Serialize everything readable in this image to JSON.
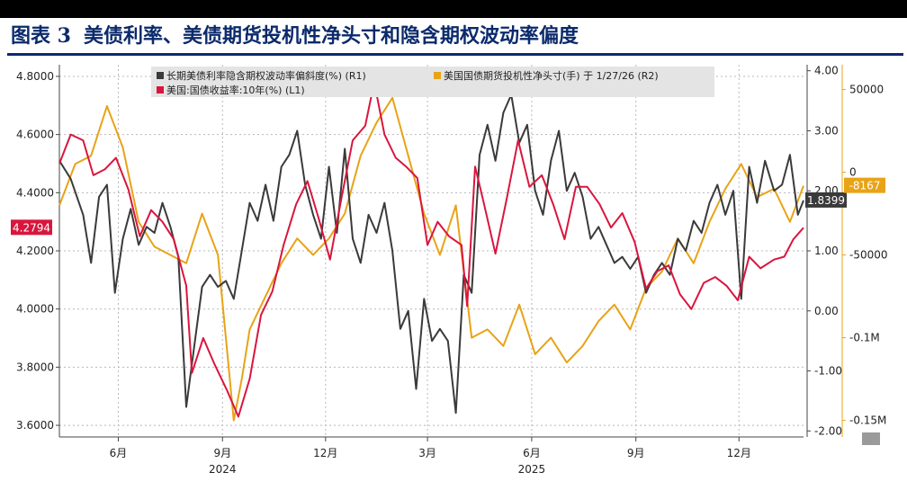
{
  "header": {
    "figure_no": "图表 3",
    "title": "美债利率、美债期货投机性净头寸和隐含期权波动率偏度"
  },
  "chart_data": {
    "type": "line",
    "x_ticks": [
      {
        "label": "6月",
        "date": "2024-06-01"
      },
      {
        "label": "9月",
        "date": "2024-09-01"
      },
      {
        "label": "12月",
        "date": "2024-12-01"
      },
      {
        "label": "3月",
        "date": "2025-03-01"
      },
      {
        "label": "6月",
        "date": "2025-06-01"
      },
      {
        "label": "9月",
        "date": "2025-09-01"
      },
      {
        "label": "12月",
        "date": "2025-12-01"
      }
    ],
    "year_labels": [
      {
        "label": "2024",
        "date": "2024-09-01"
      },
      {
        "label": "2025",
        "date": "2025-06-01"
      }
    ],
    "x_range": [
      "2024-04-10",
      "2026-01-27"
    ],
    "axes": {
      "L1": {
        "ticks": [
          "3.6000",
          "3.8000",
          "4.0000",
          "4.2000",
          "4.4000",
          "4.6000",
          "4.8000"
        ],
        "ylim": [
          3.56,
          4.84
        ]
      },
      "R1": {
        "ticks": [
          "-2.00",
          "-1.00",
          "0.00",
          "1.00",
          "2.00",
          "3.00",
          "4.00"
        ],
        "ylim": [
          -2.1,
          4.1
        ]
      },
      "R2": {
        "ticks": [
          "-0.15M",
          "-0.1M",
          "-50000",
          "0",
          "50000"
        ],
        "tick_values": [
          -150000,
          -100000,
          -50000,
          0,
          50000
        ],
        "ylim": [
          -160000,
          65000
        ]
      }
    },
    "legend": [
      {
        "name": "长期美债利率隐含期权波动率偏斜度(%) (R1)",
        "color": "#3a3a3a"
      },
      {
        "name": "美国国债期货投机性净头寸(手) 于 1/27/26 (R2)",
        "color": "#e8a317"
      },
      {
        "name": "美国:国债收益率:10年(%) (L1)",
        "color": "#d9163d"
      }
    ],
    "last_value_tags": [
      {
        "text": "4.2794",
        "axis": "L1",
        "value": 4.2794,
        "color": "#d9163d"
      },
      {
        "text": "1.8399",
        "axis": "R1",
        "value": 1.8399,
        "color": "#3a3a3a"
      },
      {
        "text": "-8167",
        "axis": "R2",
        "value": -8167,
        "color": "#e8a317"
      }
    ],
    "series": [
      {
        "name": "长期美债利率隐含期权波动率偏斜度(%) (R1)",
        "axis": "R1",
        "color": "#3a3a3a",
        "points": [
          [
            "2024-04-10",
            2.5
          ],
          [
            "2024-04-20",
            2.2
          ],
          [
            "2024-05-01",
            1.6
          ],
          [
            "2024-05-08",
            0.8
          ],
          [
            "2024-05-15",
            1.9
          ],
          [
            "2024-05-22",
            2.1
          ],
          [
            "2024-05-29",
            0.3
          ],
          [
            "2024-06-05",
            1.2
          ],
          [
            "2024-06-12",
            1.7
          ],
          [
            "2024-06-19",
            1.1
          ],
          [
            "2024-06-26",
            1.4
          ],
          [
            "2024-07-03",
            1.3
          ],
          [
            "2024-07-10",
            1.8
          ],
          [
            "2024-07-17",
            1.4
          ],
          [
            "2024-07-24",
            0.9
          ],
          [
            "2024-07-31",
            -1.6
          ],
          [
            "2024-08-07",
            -0.6
          ],
          [
            "2024-08-14",
            0.4
          ],
          [
            "2024-08-21",
            0.6
          ],
          [
            "2024-08-28",
            0.4
          ],
          [
            "2024-09-04",
            0.5
          ],
          [
            "2024-09-11",
            0.2
          ],
          [
            "2024-09-18",
            1.0
          ],
          [
            "2024-09-25",
            1.8
          ],
          [
            "2024-10-02",
            1.5
          ],
          [
            "2024-10-09",
            2.1
          ],
          [
            "2024-10-16",
            1.5
          ],
          [
            "2024-10-23",
            2.4
          ],
          [
            "2024-10-30",
            2.6
          ],
          [
            "2024-11-06",
            3.0
          ],
          [
            "2024-11-13",
            2.1
          ],
          [
            "2024-11-20",
            1.6
          ],
          [
            "2024-11-27",
            1.2
          ],
          [
            "2024-12-04",
            2.4
          ],
          [
            "2024-12-11",
            1.3
          ],
          [
            "2024-12-18",
            2.7
          ],
          [
            "2024-12-25",
            1.2
          ],
          [
            "2025-01-01",
            0.8
          ],
          [
            "2025-01-08",
            1.6
          ],
          [
            "2025-01-15",
            1.3
          ],
          [
            "2025-01-22",
            1.8
          ],
          [
            "2025-01-29",
            1.0
          ],
          [
            "2025-02-05",
            -0.3
          ],
          [
            "2025-02-12",
            0.0
          ],
          [
            "2025-02-19",
            -1.3
          ],
          [
            "2025-02-26",
            0.2
          ],
          [
            "2025-03-05",
            -0.5
          ],
          [
            "2025-03-12",
            -0.3
          ],
          [
            "2025-03-19",
            -0.5
          ],
          [
            "2025-03-26",
            -1.7
          ],
          [
            "2025-04-02",
            0.6
          ],
          [
            "2025-04-09",
            0.3
          ],
          [
            "2025-04-16",
            2.6
          ],
          [
            "2025-04-23",
            3.1
          ],
          [
            "2025-04-30",
            2.5
          ],
          [
            "2025-05-07",
            3.3
          ],
          [
            "2025-05-14",
            3.6
          ],
          [
            "2025-05-21",
            2.8
          ],
          [
            "2025-05-28",
            3.1
          ],
          [
            "2025-06-04",
            2.0
          ],
          [
            "2025-06-11",
            1.6
          ],
          [
            "2025-06-18",
            2.5
          ],
          [
            "2025-06-25",
            3.0
          ],
          [
            "2025-07-02",
            2.0
          ],
          [
            "2025-07-09",
            2.3
          ],
          [
            "2025-07-16",
            1.9
          ],
          [
            "2025-07-23",
            1.2
          ],
          [
            "2025-07-30",
            1.4
          ],
          [
            "2025-08-06",
            1.1
          ],
          [
            "2025-08-13",
            0.8
          ],
          [
            "2025-08-20",
            0.9
          ],
          [
            "2025-08-27",
            0.7
          ],
          [
            "2025-09-03",
            0.9
          ],
          [
            "2025-09-10",
            0.3
          ],
          [
            "2025-09-17",
            0.6
          ],
          [
            "2025-09-24",
            0.8
          ],
          [
            "2025-10-01",
            0.6
          ],
          [
            "2025-10-08",
            1.2
          ],
          [
            "2025-10-15",
            1.0
          ],
          [
            "2025-10-22",
            1.5
          ],
          [
            "2025-10-29",
            1.3
          ],
          [
            "2025-11-05",
            1.8
          ],
          [
            "2025-11-12",
            2.1
          ],
          [
            "2025-11-19",
            1.6
          ],
          [
            "2025-11-26",
            2.0
          ],
          [
            "2025-12-03",
            0.2
          ],
          [
            "2025-12-10",
            2.4
          ],
          [
            "2025-12-17",
            1.8
          ],
          [
            "2025-12-24",
            2.5
          ],
          [
            "2026-01-01",
            2.0
          ],
          [
            "2026-01-08",
            2.1
          ],
          [
            "2026-01-15",
            2.6
          ],
          [
            "2026-01-22",
            1.6
          ],
          [
            "2026-01-27",
            1.8399
          ]
        ]
      },
      {
        "name": "美国国债期货投机性净头寸(手) 于 1/27/26 (R2)",
        "axis": "R2",
        "color": "#e8a317",
        "points": [
          [
            "2024-04-10",
            -20000
          ],
          [
            "2024-04-24",
            5000
          ],
          [
            "2024-05-08",
            10000
          ],
          [
            "2024-05-22",
            40000
          ],
          [
            "2024-06-05",
            15000
          ],
          [
            "2024-06-19",
            -30000
          ],
          [
            "2024-07-03",
            -45000
          ],
          [
            "2024-07-17",
            -50000
          ],
          [
            "2024-07-31",
            -55000
          ],
          [
            "2024-08-14",
            -25000
          ],
          [
            "2024-08-28",
            -50000
          ],
          [
            "2024-09-04",
            -100000
          ],
          [
            "2024-09-11",
            -150000
          ],
          [
            "2024-09-18",
            -125000
          ],
          [
            "2024-09-25",
            -95000
          ],
          [
            "2024-10-09",
            -75000
          ],
          [
            "2024-10-23",
            -55000
          ],
          [
            "2024-11-06",
            -40000
          ],
          [
            "2024-11-20",
            -50000
          ],
          [
            "2024-12-04",
            -40000
          ],
          [
            "2024-12-18",
            -25000
          ],
          [
            "2025-01-01",
            10000
          ],
          [
            "2025-01-15",
            30000
          ],
          [
            "2025-01-29",
            45000
          ],
          [
            "2025-02-12",
            10000
          ],
          [
            "2025-02-26",
            -25000
          ],
          [
            "2025-03-12",
            -50000
          ],
          [
            "2025-03-26",
            -20000
          ],
          [
            "2025-04-09",
            -100000
          ],
          [
            "2025-04-23",
            -95000
          ],
          [
            "2025-05-07",
            -105000
          ],
          [
            "2025-05-21",
            -80000
          ],
          [
            "2025-06-04",
            -110000
          ],
          [
            "2025-06-18",
            -100000
          ],
          [
            "2025-07-02",
            -115000
          ],
          [
            "2025-07-16",
            -105000
          ],
          [
            "2025-07-30",
            -90000
          ],
          [
            "2025-08-13",
            -80000
          ],
          [
            "2025-08-27",
            -95000
          ],
          [
            "2025-09-10",
            -70000
          ],
          [
            "2025-09-24",
            -60000
          ],
          [
            "2025-10-08",
            -40000
          ],
          [
            "2025-10-22",
            -55000
          ],
          [
            "2025-11-05",
            -30000
          ],
          [
            "2025-11-19",
            -10000
          ],
          [
            "2025-12-03",
            5000
          ],
          [
            "2025-12-17",
            -15000
          ],
          [
            "2026-01-01",
            -10000
          ],
          [
            "2026-01-15",
            -30000
          ],
          [
            "2026-01-27",
            -8167
          ]
        ]
      },
      {
        "name": "美国:国债收益率:10年(%) (L1)",
        "axis": "L1",
        "color": "#d9163d",
        "points": [
          [
            "2024-04-10",
            4.5
          ],
          [
            "2024-04-20",
            4.6
          ],
          [
            "2024-05-01",
            4.58
          ],
          [
            "2024-05-10",
            4.46
          ],
          [
            "2024-05-20",
            4.48
          ],
          [
            "2024-05-30",
            4.52
          ],
          [
            "2024-06-10",
            4.41
          ],
          [
            "2024-06-20",
            4.25
          ],
          [
            "2024-06-30",
            4.34
          ],
          [
            "2024-07-10",
            4.3
          ],
          [
            "2024-07-20",
            4.24
          ],
          [
            "2024-07-31",
            4.08
          ],
          [
            "2024-08-05",
            3.78
          ],
          [
            "2024-08-15",
            3.9
          ],
          [
            "2024-08-25",
            3.81
          ],
          [
            "2024-09-05",
            3.72
          ],
          [
            "2024-09-15",
            3.63
          ],
          [
            "2024-09-25",
            3.76
          ],
          [
            "2024-10-05",
            3.98
          ],
          [
            "2024-10-15",
            4.06
          ],
          [
            "2024-10-25",
            4.22
          ],
          [
            "2024-11-05",
            4.36
          ],
          [
            "2024-11-15",
            4.44
          ],
          [
            "2024-11-25",
            4.31
          ],
          [
            "2024-12-05",
            4.17
          ],
          [
            "2024-12-15",
            4.38
          ],
          [
            "2024-12-25",
            4.58
          ],
          [
            "2025-01-05",
            4.63
          ],
          [
            "2025-01-13",
            4.78
          ],
          [
            "2025-01-22",
            4.6
          ],
          [
            "2025-02-01",
            4.52
          ],
          [
            "2025-02-10",
            4.49
          ],
          [
            "2025-02-20",
            4.45
          ],
          [
            "2025-03-01",
            4.22
          ],
          [
            "2025-03-10",
            4.3
          ],
          [
            "2025-03-20",
            4.25
          ],
          [
            "2025-03-31",
            4.22
          ],
          [
            "2025-04-05",
            4.01
          ],
          [
            "2025-04-12",
            4.49
          ],
          [
            "2025-04-20",
            4.36
          ],
          [
            "2025-04-30",
            4.19
          ],
          [
            "2025-05-10",
            4.38
          ],
          [
            "2025-05-20",
            4.58
          ],
          [
            "2025-05-30",
            4.42
          ],
          [
            "2025-06-10",
            4.46
          ],
          [
            "2025-06-20",
            4.36
          ],
          [
            "2025-06-30",
            4.24
          ],
          [
            "2025-07-10",
            4.42
          ],
          [
            "2025-07-20",
            4.42
          ],
          [
            "2025-07-31",
            4.36
          ],
          [
            "2025-08-10",
            4.28
          ],
          [
            "2025-08-20",
            4.33
          ],
          [
            "2025-08-31",
            4.23
          ],
          [
            "2025-09-10",
            4.07
          ],
          [
            "2025-09-20",
            4.13
          ],
          [
            "2025-09-30",
            4.15
          ],
          [
            "2025-10-10",
            4.05
          ],
          [
            "2025-10-20",
            4.0
          ],
          [
            "2025-10-31",
            4.09
          ],
          [
            "2025-11-10",
            4.11
          ],
          [
            "2025-11-20",
            4.08
          ],
          [
            "2025-11-30",
            4.03
          ],
          [
            "2025-12-10",
            4.18
          ],
          [
            "2025-12-20",
            4.14
          ],
          [
            "2026-01-01",
            4.17
          ],
          [
            "2026-01-10",
            4.18
          ],
          [
            "2026-01-18",
            4.24
          ],
          [
            "2026-01-27",
            4.2794
          ]
        ]
      }
    ]
  }
}
